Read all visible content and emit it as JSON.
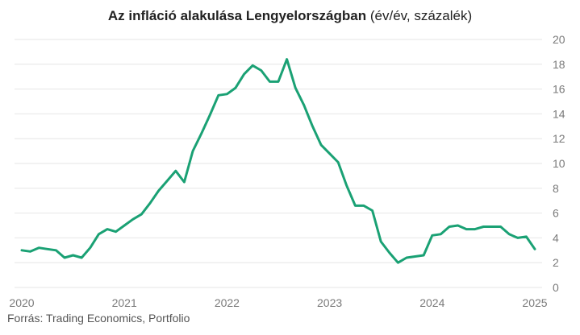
{
  "title": {
    "main": "Az infláció alakulása Lengyelországban",
    "sub": "(év/év, százalék)"
  },
  "source": "Forrás: Trading Economics, Portfolio",
  "colors": {
    "line": "#1aa174",
    "grid": "#e6e6e6",
    "axis": "#7a7a7a"
  },
  "chart_data": {
    "type": "line",
    "x_tick_labels": [
      "2020",
      "2021",
      "2022",
      "2023",
      "2024",
      "2025"
    ],
    "y_ticks": [
      0,
      2,
      4,
      6,
      8,
      10,
      12,
      14,
      16,
      18,
      20
    ],
    "ylim": [
      0,
      20
    ],
    "xlim": [
      "2020-01",
      "2025-06"
    ],
    "grid": true,
    "y_axis_side": "right",
    "series": [
      {
        "values": [
          [
            "2020-01",
            3.0
          ],
          [
            "2020-02",
            2.9
          ],
          [
            "2020-03",
            3.2
          ],
          [
            "2020-04",
            3.1
          ],
          [
            "2020-05",
            3.0
          ],
          [
            "2020-06",
            2.4
          ],
          [
            "2020-07",
            2.6
          ],
          [
            "2020-08",
            2.4
          ],
          [
            "2020-09",
            3.2
          ],
          [
            "2020-10",
            4.3
          ],
          [
            "2020-11",
            4.7
          ],
          [
            "2020-12",
            4.5
          ],
          [
            "2021-01",
            5.0
          ],
          [
            "2021-02",
            5.5
          ],
          [
            "2021-03",
            5.9
          ],
          [
            "2021-04",
            6.8
          ],
          [
            "2021-05",
            7.8
          ],
          [
            "2021-06",
            8.6
          ],
          [
            "2021-07",
            9.4
          ],
          [
            "2021-08",
            8.5
          ],
          [
            "2021-09",
            11.0
          ],
          [
            "2021-10",
            12.4
          ],
          [
            "2021-11",
            13.9
          ],
          [
            "2021-12",
            15.5
          ],
          [
            "2022-01",
            15.6
          ],
          [
            "2022-02",
            16.1
          ],
          [
            "2022-03",
            17.2
          ],
          [
            "2022-04",
            17.9
          ],
          [
            "2022-05",
            17.5
          ],
          [
            "2022-06",
            16.6
          ],
          [
            "2022-07",
            16.6
          ],
          [
            "2022-08",
            18.4
          ],
          [
            "2022-09",
            16.1
          ],
          [
            "2022-10",
            14.7
          ],
          [
            "2022-11",
            13.0
          ],
          [
            "2022-12",
            11.5
          ],
          [
            "2023-01",
            10.8
          ],
          [
            "2023-02",
            10.1
          ],
          [
            "2023-03",
            8.2
          ],
          [
            "2023-04",
            6.6
          ],
          [
            "2023-05",
            6.6
          ],
          [
            "2023-06",
            6.2
          ],
          [
            "2023-07",
            3.7
          ],
          [
            "2023-08",
            2.8
          ],
          [
            "2023-09",
            2.0
          ],
          [
            "2023-10",
            2.4
          ],
          [
            "2023-11",
            2.5
          ],
          [
            "2023-12",
            2.6
          ],
          [
            "2024-01",
            4.2
          ],
          [
            "2024-02",
            4.3
          ],
          [
            "2024-03",
            4.9
          ],
          [
            "2024-04",
            5.0
          ],
          [
            "2024-05",
            4.7
          ],
          [
            "2024-06",
            4.7
          ],
          [
            "2024-07",
            4.9
          ],
          [
            "2024-08",
            4.9
          ],
          [
            "2024-09",
            4.9
          ],
          [
            "2024-10",
            4.3
          ],
          [
            "2024-11",
            4.0
          ],
          [
            "2024-12",
            4.1
          ],
          [
            "2025-01",
            3.1
          ]
        ]
      }
    ]
  }
}
